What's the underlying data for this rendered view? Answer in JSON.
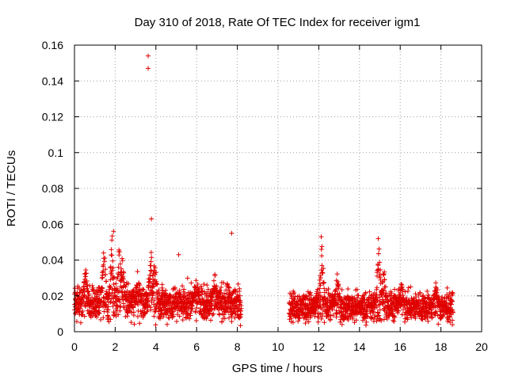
{
  "chart_data": {
    "type": "scatter",
    "title": "Day 310 of 2018, Rate Of TEC Index for receiver igm1",
    "xlabel": "GPS time / hours",
    "ylabel": "ROTI / TECUs",
    "xlim": [
      0,
      20
    ],
    "ylim": [
      0,
      0.16
    ],
    "x_ticks": [
      0,
      2,
      4,
      6,
      8,
      10,
      12,
      14,
      16,
      18,
      20
    ],
    "y_ticks": [
      0,
      0.02,
      0.04,
      0.06,
      0.08,
      0.1,
      0.12,
      0.14,
      0.16
    ],
    "x_tick_labels": [
      "0",
      "2",
      "4",
      "6",
      "8",
      "10",
      "12",
      "14",
      "16",
      "18",
      "20"
    ],
    "y_tick_labels": [
      "0",
      "0.02",
      "0.04",
      "0.06",
      "0.08",
      "0.1",
      "0.12",
      "0.14",
      "0.16"
    ],
    "grid": true,
    "marker": "+",
    "color": "#e00000",
    "outliers": [
      {
        "x": 3.62,
        "y": 0.154
      },
      {
        "x": 3.62,
        "y": 0.147
      },
      {
        "x": 3.78,
        "y": 0.063
      },
      {
        "x": 7.72,
        "y": 0.055
      },
      {
        "x": 1.92,
        "y": 0.056
      },
      {
        "x": 5.12,
        "y": 0.043
      },
      {
        "x": 14.92,
        "y": 0.052
      },
      {
        "x": 12.12,
        "y": 0.053
      }
    ],
    "segments": [
      {
        "x_start": 0.0,
        "x_end": 8.2,
        "base": 0.016,
        "spread": 0.006
      },
      {
        "x_start": 10.55,
        "x_end": 18.6,
        "base": 0.014,
        "spread": 0.005
      }
    ],
    "bursts": [
      {
        "x": 0.55,
        "y": 0.038
      },
      {
        "x": 1.45,
        "y": 0.052
      },
      {
        "x": 1.85,
        "y": 0.055
      },
      {
        "x": 2.2,
        "y": 0.051
      },
      {
        "x": 2.35,
        "y": 0.044
      },
      {
        "x": 3.1,
        "y": 0.034
      },
      {
        "x": 3.75,
        "y": 0.05
      },
      {
        "x": 3.95,
        "y": 0.044
      },
      {
        "x": 6.0,
        "y": 0.032
      },
      {
        "x": 6.9,
        "y": 0.034
      },
      {
        "x": 12.15,
        "y": 0.051
      },
      {
        "x": 12.9,
        "y": 0.035
      },
      {
        "x": 14.95,
        "y": 0.05
      },
      {
        "x": 15.2,
        "y": 0.036
      },
      {
        "x": 16.05,
        "y": 0.029
      },
      {
        "x": 17.75,
        "y": 0.028
      }
    ]
  }
}
